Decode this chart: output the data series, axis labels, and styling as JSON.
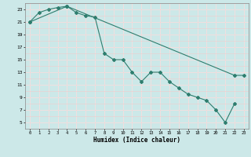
{
  "title": "",
  "xlabel": "Humidex (Indice chaleur)",
  "bg_color": "#cce8e8",
  "line_color": "#2e7d6e",
  "grid_major_color": "#ffffff",
  "grid_minor_color": "#f0cccc",
  "xlim": [
    -0.5,
    23.5
  ],
  "ylim": [
    4,
    24
  ],
  "xticks": [
    0,
    1,
    2,
    3,
    4,
    5,
    6,
    7,
    8,
    9,
    10,
    11,
    12,
    13,
    14,
    15,
    16,
    17,
    18,
    19,
    20,
    21,
    22,
    23
  ],
  "yticks": [
    5,
    7,
    9,
    11,
    13,
    15,
    17,
    19,
    21,
    23
  ],
  "line1_x": [
    0,
    1,
    2,
    3,
    4,
    5,
    6,
    7,
    8,
    9,
    10,
    11,
    12,
    13,
    14,
    15,
    16,
    17,
    18,
    19,
    20,
    21,
    22
  ],
  "line1_y": [
    21,
    22.5,
    23,
    23.3,
    23.5,
    22.5,
    22,
    21.8,
    16,
    15,
    15,
    13,
    11.5,
    13,
    13,
    11.5,
    10.5,
    9.5,
    9,
    8.5,
    7,
    5,
    8
  ],
  "line2_x": [
    0,
    4,
    22,
    23
  ],
  "line2_y": [
    21,
    23.5,
    12.5,
    12.5
  ]
}
